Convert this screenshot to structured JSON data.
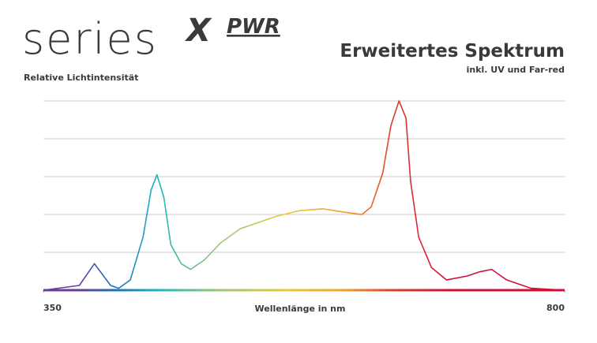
{
  "logo": {
    "text": "series",
    "mark": "X",
    "suffix": "PWR"
  },
  "chart_data": {
    "type": "line",
    "title": "Erweitertes Spektrum",
    "subtitle": "inkl. UV und Far-red",
    "y_label": "Relative Lichtintensität",
    "x_label": "Wellenlänge in nm",
    "x": [
      350,
      381,
      394,
      408,
      415,
      425,
      436,
      443,
      448,
      454,
      460,
      469,
      477,
      489,
      503,
      520,
      551,
      571,
      591,
      612,
      625,
      633,
      643,
      650,
      657,
      663,
      667,
      674,
      685,
      698,
      716,
      726,
      737,
      750,
      771,
      800
    ],
    "values": [
      0,
      2.5,
      14,
      2.5,
      1,
      5.4,
      28,
      53,
      61,
      49,
      24,
      14,
      11,
      16,
      25,
      32.5,
      39,
      42,
      43,
      41,
      40,
      44,
      62,
      87,
      100,
      91,
      57.5,
      28,
      12,
      5.4,
      7.5,
      9.6,
      11,
      5.4,
      1,
      0
    ],
    "gradient": [
      {
        "value": 380,
        "color": "#6a3d9a"
      },
      {
        "value": 410,
        "color": "#1f6fb5"
      },
      {
        "value": 450,
        "color": "#1fb5c0"
      },
      {
        "value": 500,
        "color": "#9cc47a"
      },
      {
        "value": 560,
        "color": "#e8c93a"
      },
      {
        "value": 610,
        "color": "#f0a030"
      },
      {
        "value": 650,
        "color": "#e0402a"
      },
      {
        "value": 700,
        "color": "#d0103a"
      }
    ],
    "xlim": [
      350,
      800
    ],
    "xticks": [
      350,
      800
    ],
    "ylim": [
      0,
      100
    ],
    "yticks": [
      0,
      20,
      40,
      60,
      80,
      100
    ],
    "grid": true
  }
}
